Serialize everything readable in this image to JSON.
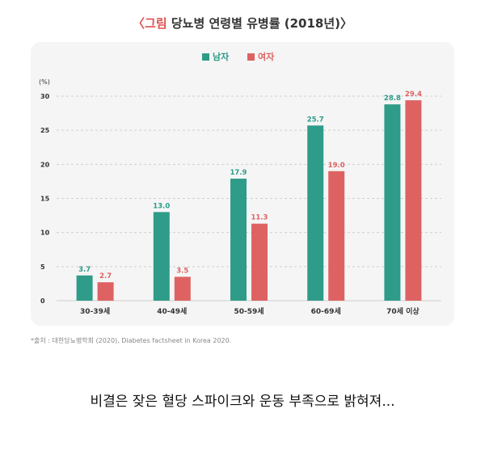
{
  "header": {
    "title_prefix": "〈그림",
    "title_main": " 당뇨병 연령별 유병률 (2018년)〉"
  },
  "colors": {
    "male": "#2e9c89",
    "female": "#de6262",
    "grid": "#d0d0d0",
    "axis_text": "#333333",
    "title_accent": "#e0524f"
  },
  "chart_data": {
    "type": "bar",
    "categories": [
      "30-39세",
      "40-49세",
      "50-59세",
      "60-69세",
      "70세 이상"
    ],
    "series": [
      {
        "name": "남자",
        "values": [
          3.7,
          13.0,
          17.9,
          25.7,
          28.8
        ],
        "labels": [
          "3.7",
          "13.0",
          "17.9",
          "25.7",
          "28.8"
        ]
      },
      {
        "name": "여자",
        "values": [
          2.7,
          3.5,
          11.3,
          19.0,
          29.4
        ],
        "labels": [
          "2.7",
          "3.5",
          "11.3",
          "19.0",
          "29.4"
        ]
      }
    ],
    "yunit": "(%)",
    "ylim": [
      0,
      30
    ],
    "yticks": [
      "0",
      "5",
      "10",
      "15",
      "20",
      "25",
      "30"
    ],
    "grid": true,
    "legend": "top-center"
  },
  "source_note": "*출처 : 대한당뇨병학회 (2020), Diabetes factsheet in Korea 2020.",
  "caption": "비결은 잦은 혈당 스파이크와 운동 부족으로 밝혀져..."
}
